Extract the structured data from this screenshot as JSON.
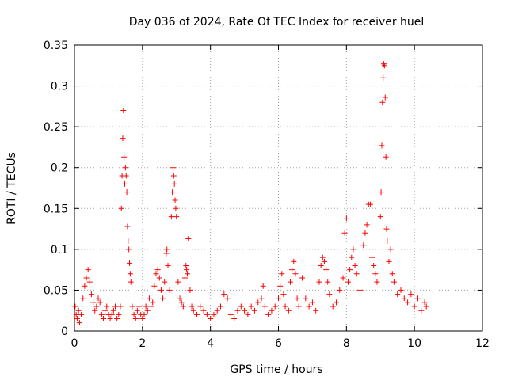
{
  "chart_data": {
    "type": "scatter",
    "title": "Day 036 of 2024, Rate Of TEC Index for receiver huel",
    "xlabel": "GPS time / hours",
    "ylabel": "ROTI / TECUs",
    "xlim": [
      0,
      12
    ],
    "ylim": [
      0,
      0.35
    ],
    "x_ticks": [
      0,
      2,
      4,
      6,
      8,
      10,
      12
    ],
    "x_tick_labels": [
      "0",
      "2",
      "4",
      "6",
      "8",
      "10",
      "12"
    ],
    "y_ticks": [
      0,
      0.05,
      0.1,
      0.15,
      0.2,
      0.25,
      0.3,
      0.35
    ],
    "y_tick_labels": [
      "0",
      "0.05",
      "0.1",
      "0.15",
      "0.2",
      "0.25",
      "0.3",
      "0.35"
    ],
    "grid": true,
    "marker": "+",
    "color": "#ff0000",
    "series": [
      {
        "name": "ROTI",
        "points": [
          [
            0.02,
            0.03
          ],
          [
            0.05,
            0.02
          ],
          [
            0.08,
            0.015
          ],
          [
            0.12,
            0.025
          ],
          [
            0.15,
            0.01
          ],
          [
            0.2,
            0.02
          ],
          [
            0.25,
            0.04
          ],
          [
            0.3,
            0.055
          ],
          [
            0.35,
            0.065
          ],
          [
            0.4,
            0.075
          ],
          [
            0.45,
            0.06
          ],
          [
            0.5,
            0.045
          ],
          [
            0.55,
            0.035
          ],
          [
            0.6,
            0.025
          ],
          [
            0.65,
            0.03
          ],
          [
            0.7,
            0.04
          ],
          [
            0.75,
            0.035
          ],
          [
            0.8,
            0.02
          ],
          [
            0.85,
            0.015
          ],
          [
            0.9,
            0.025
          ],
          [
            0.95,
            0.03
          ],
          [
            1.0,
            0.02
          ],
          [
            1.05,
            0.015
          ],
          [
            1.1,
            0.02
          ],
          [
            1.15,
            0.025
          ],
          [
            1.2,
            0.03
          ],
          [
            1.25,
            0.015
          ],
          [
            1.3,
            0.02
          ],
          [
            1.35,
            0.03
          ],
          [
            1.38,
            0.15
          ],
          [
            1.4,
            0.19
          ],
          [
            1.42,
            0.236
          ],
          [
            1.44,
            0.27
          ],
          [
            1.46,
            0.213
          ],
          [
            1.48,
            0.18
          ],
          [
            1.5,
            0.2
          ],
          [
            1.52,
            0.19
          ],
          [
            1.54,
            0.17
          ],
          [
            1.56,
            0.128
          ],
          [
            1.58,
            0.11
          ],
          [
            1.6,
            0.1
          ],
          [
            1.62,
            0.083
          ],
          [
            1.64,
            0.07
          ],
          [
            1.66,
            0.06
          ],
          [
            1.7,
            0.03
          ],
          [
            1.75,
            0.02
          ],
          [
            1.8,
            0.015
          ],
          [
            1.85,
            0.025
          ],
          [
            1.9,
            0.03
          ],
          [
            1.95,
            0.02
          ],
          [
            2.0,
            0.015
          ],
          [
            2.05,
            0.02
          ],
          [
            2.1,
            0.03
          ],
          [
            2.15,
            0.025
          ],
          [
            2.2,
            0.04
          ],
          [
            2.25,
            0.03
          ],
          [
            2.3,
            0.035
          ],
          [
            2.35,
            0.055
          ],
          [
            2.4,
            0.07
          ],
          [
            2.45,
            0.075
          ],
          [
            2.5,
            0.065
          ],
          [
            2.55,
            0.05
          ],
          [
            2.6,
            0.04
          ],
          [
            2.65,
            0.06
          ],
          [
            2.7,
            0.095
          ],
          [
            2.72,
            0.1
          ],
          [
            2.75,
            0.08
          ],
          [
            2.8,
            0.05
          ],
          [
            2.85,
            0.14
          ],
          [
            2.88,
            0.17
          ],
          [
            2.9,
            0.2
          ],
          [
            2.92,
            0.19
          ],
          [
            2.94,
            0.18
          ],
          [
            2.96,
            0.16
          ],
          [
            2.98,
            0.15
          ],
          [
            3.0,
            0.14
          ],
          [
            3.05,
            0.06
          ],
          [
            3.1,
            0.04
          ],
          [
            3.15,
            0.035
          ],
          [
            3.2,
            0.03
          ],
          [
            3.25,
            0.065
          ],
          [
            3.28,
            0.08
          ],
          [
            3.3,
            0.075
          ],
          [
            3.32,
            0.07
          ],
          [
            3.35,
            0.113
          ],
          [
            3.4,
            0.05
          ],
          [
            3.45,
            0.03
          ],
          [
            3.5,
            0.025
          ],
          [
            3.6,
            0.02
          ],
          [
            3.7,
            0.03
          ],
          [
            3.8,
            0.025
          ],
          [
            3.9,
            0.02
          ],
          [
            4.0,
            0.015
          ],
          [
            4.1,
            0.02
          ],
          [
            4.2,
            0.025
          ],
          [
            4.3,
            0.03
          ],
          [
            4.4,
            0.045
          ],
          [
            4.5,
            0.04
          ],
          [
            4.6,
            0.02
          ],
          [
            4.7,
            0.015
          ],
          [
            4.8,
            0.025
          ],
          [
            4.9,
            0.03
          ],
          [
            5.0,
            0.025
          ],
          [
            5.1,
            0.02
          ],
          [
            5.2,
            0.03
          ],
          [
            5.3,
            0.025
          ],
          [
            5.4,
            0.035
          ],
          [
            5.5,
            0.04
          ],
          [
            5.55,
            0.055
          ],
          [
            5.6,
            0.03
          ],
          [
            5.7,
            0.02
          ],
          [
            5.8,
            0.025
          ],
          [
            5.9,
            0.03
          ],
          [
            6.0,
            0.04
          ],
          [
            6.05,
            0.055
          ],
          [
            6.1,
            0.07
          ],
          [
            6.15,
            0.045
          ],
          [
            6.2,
            0.03
          ],
          [
            6.3,
            0.025
          ],
          [
            6.35,
            0.06
          ],
          [
            6.4,
            0.075
          ],
          [
            6.45,
            0.085
          ],
          [
            6.5,
            0.07
          ],
          [
            6.55,
            0.04
          ],
          [
            6.6,
            0.03
          ],
          [
            6.7,
            0.065
          ],
          [
            6.8,
            0.04
          ],
          [
            6.9,
            0.03
          ],
          [
            7.0,
            0.035
          ],
          [
            7.1,
            0.025
          ],
          [
            7.2,
            0.06
          ],
          [
            7.25,
            0.08
          ],
          [
            7.3,
            0.09
          ],
          [
            7.35,
            0.085
          ],
          [
            7.4,
            0.075
          ],
          [
            7.45,
            0.06
          ],
          [
            7.5,
            0.045
          ],
          [
            7.6,
            0.03
          ],
          [
            7.7,
            0.035
          ],
          [
            7.8,
            0.05
          ],
          [
            7.9,
            0.065
          ],
          [
            7.95,
            0.12
          ],
          [
            8.0,
            0.138
          ],
          [
            8.05,
            0.06
          ],
          [
            8.1,
            0.075
          ],
          [
            8.15,
            0.09
          ],
          [
            8.2,
            0.1
          ],
          [
            8.25,
            0.08
          ],
          [
            8.3,
            0.07
          ],
          [
            8.4,
            0.05
          ],
          [
            8.5,
            0.105
          ],
          [
            8.55,
            0.12
          ],
          [
            8.6,
            0.13
          ],
          [
            8.65,
            0.155
          ],
          [
            8.7,
            0.155
          ],
          [
            8.75,
            0.09
          ],
          [
            8.8,
            0.08
          ],
          [
            8.85,
            0.07
          ],
          [
            8.9,
            0.06
          ],
          [
            9.0,
            0.14
          ],
          [
            9.02,
            0.17
          ],
          [
            9.04,
            0.227
          ],
          [
            9.06,
            0.28
          ],
          [
            9.08,
            0.31
          ],
          [
            9.1,
            0.327
          ],
          [
            9.12,
            0.325
          ],
          [
            9.14,
            0.286
          ],
          [
            9.16,
            0.213
          ],
          [
            9.18,
            0.125
          ],
          [
            9.2,
            0.11
          ],
          [
            9.25,
            0.085
          ],
          [
            9.3,
            0.1
          ],
          [
            9.35,
            0.07
          ],
          [
            9.4,
            0.06
          ],
          [
            9.5,
            0.045
          ],
          [
            9.6,
            0.05
          ],
          [
            9.7,
            0.04
          ],
          [
            9.8,
            0.035
          ],
          [
            9.9,
            0.045
          ],
          [
            10.0,
            0.03
          ],
          [
            10.1,
            0.04
          ],
          [
            10.2,
            0.025
          ],
          [
            10.3,
            0.035
          ],
          [
            10.35,
            0.03
          ]
        ]
      }
    ]
  }
}
